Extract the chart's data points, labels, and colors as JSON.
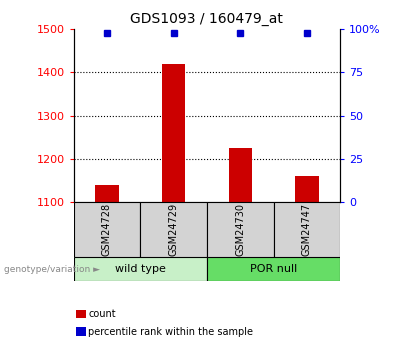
{
  "title": "GDS1093 / 160479_at",
  "samples": [
    "GSM24728",
    "GSM24729",
    "GSM24730",
    "GSM24747"
  ],
  "red_values": [
    1140,
    1420,
    1225,
    1160
  ],
  "blue_values": [
    98,
    98,
    98,
    98
  ],
  "ylim_left": [
    1100,
    1500
  ],
  "ylim_right": [
    0,
    100
  ],
  "yticks_left": [
    1100,
    1200,
    1300,
    1400,
    1500
  ],
  "yticks_right": [
    0,
    25,
    50,
    75,
    100
  ],
  "groups": [
    {
      "label": "wild type",
      "indices": [
        0,
        1
      ],
      "color": "#c8f0c8"
    },
    {
      "label": "POR null",
      "indices": [
        2,
        3
      ],
      "color": "#66dd66"
    }
  ],
  "legend_items": [
    {
      "color": "#cc0000",
      "label": "count"
    },
    {
      "color": "#0000cc",
      "label": "percentile rank within the sample"
    }
  ],
  "genotype_label": "genotype/variation",
  "bar_width": 0.35,
  "bar_color": "#cc0000",
  "square_color": "#0000cc",
  "sample_box_color": "#d3d3d3"
}
